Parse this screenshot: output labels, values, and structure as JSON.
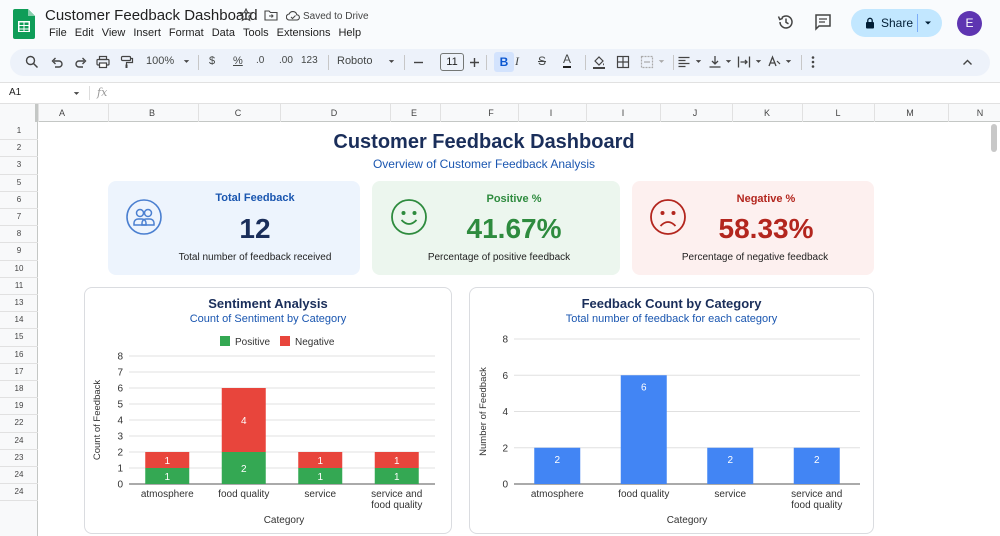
{
  "app": {
    "title": "Customer Feedback Dashboard",
    "saved_status": "Saved to Drive",
    "menu": [
      "File",
      "Edit",
      "View",
      "Insert",
      "Format",
      "Data",
      "Tools",
      "Extensions",
      "Help"
    ],
    "share_label": "Share",
    "avatar_letter": "E"
  },
  "toolbar": {
    "zoom": "100%",
    "currency": "$",
    "percent": "%",
    "dec_decrease": ".0",
    "dec_increase": ".00",
    "number_format": "123",
    "font": "Roboto",
    "font_size": "11",
    "bold": "B",
    "italic": "I",
    "strike": "S",
    "text_color_glyph": "A"
  },
  "formula_bar": {
    "cell_ref": "A1",
    "fx": "fx"
  },
  "grid": {
    "columns": [
      "A",
      "B",
      "C",
      "D",
      "E",
      "F",
      "I",
      "I",
      "J",
      "K",
      "L",
      "M",
      "N"
    ],
    "rows": [
      "1",
      "2",
      "3",
      "5",
      "6",
      "7",
      "8",
      "9",
      "10",
      "11",
      "13",
      "14",
      "15",
      "16",
      "17",
      "18",
      "19",
      "22",
      "24",
      "23",
      "24",
      "24"
    ]
  },
  "dashboard": {
    "title": "Customer Feedback Dashboard",
    "subtitle": "Overview of Customer Feedback Analysis",
    "kpis": [
      {
        "label": "Total Feedback",
        "value": "12",
        "desc": "Total number of feedback received",
        "icon": "users-icon",
        "color": "#1a56b0"
      },
      {
        "label": "Positive %",
        "value": "41.67%",
        "desc": "Percentage of positive feedback",
        "icon": "smile-icon",
        "color": "#2e8b3e"
      },
      {
        "label": "Negative %",
        "value": "58.33%",
        "desc": "Percentage of negative feedback",
        "icon": "frown-icon",
        "color": "#b3261e"
      }
    ]
  },
  "chart_data": [
    {
      "type": "bar",
      "stacked": true,
      "title": "Sentiment Analysis",
      "subtitle": "Count of Sentiment by Category",
      "xlabel": "Category",
      "ylabel": "Count of Feedback",
      "categories": [
        "atmosphere",
        "food quality",
        "service",
        "service and food quality"
      ],
      "series": [
        {
          "name": "Positive",
          "values": [
            1,
            2,
            1,
            1
          ],
          "color": "#34a853"
        },
        {
          "name": "Negative",
          "values": [
            1,
            4,
            1,
            1
          ],
          "color": "#e8453c"
        }
      ],
      "ylim": [
        0,
        8
      ],
      "yticks": [
        0,
        1,
        2,
        3,
        4,
        5,
        6,
        7,
        8
      ],
      "legend": "top",
      "grid": true
    },
    {
      "type": "bar",
      "title": "Feedback Count by Category",
      "subtitle": "Total number of feedback for each category",
      "xlabel": "Category",
      "ylabel": "Number of Feedback",
      "categories": [
        "atmosphere",
        "food quality",
        "service",
        "service and food quality"
      ],
      "values": [
        2,
        6,
        2,
        2
      ],
      "color": "#4285f4",
      "ylim": [
        0,
        8
      ],
      "yticks": [
        0,
        2,
        4,
        6,
        8
      ],
      "grid": true
    }
  ]
}
